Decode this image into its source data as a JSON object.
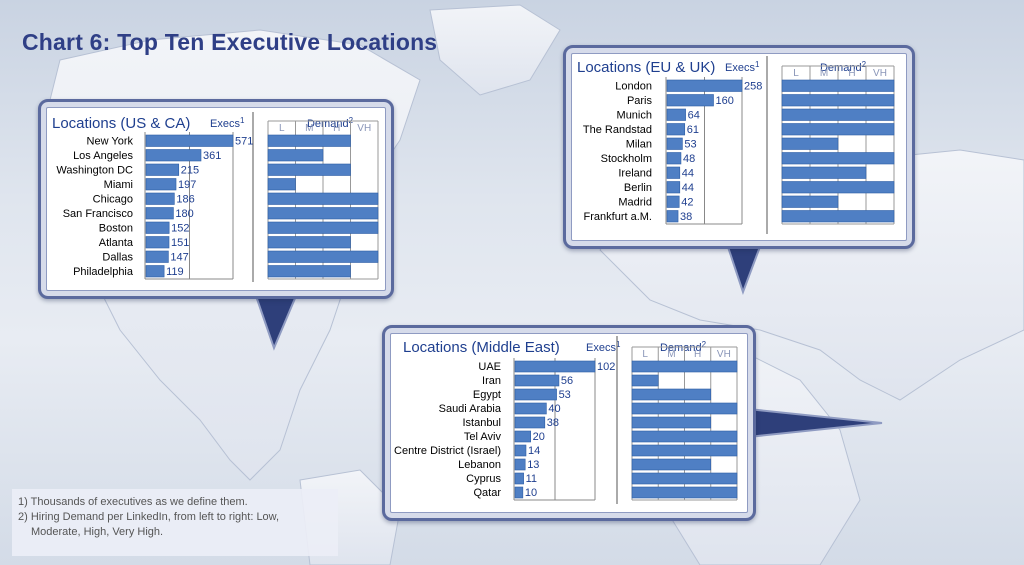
{
  "page": {
    "title": "Chart 6: Top Ten Executive Locations"
  },
  "footnotes": {
    "line1": "1) Thousands of executives as we define them.",
    "line2": "2) Hiring Demand per LinkedIn, from left to right: Low,",
    "line3": "Moderate, High, Very High."
  },
  "demand_scale": [
    "L",
    "M",
    "H",
    "VH"
  ],
  "colors": {
    "bar": "#4f7fc4",
    "bar_edge": "#2e5ea6",
    "title": "#2f3f86",
    "panel_border": "#5b6a9e"
  },
  "chart_data": [
    {
      "id": "us",
      "type": "bar",
      "title": "Locations (US & CA)",
      "execs_label": "Execs",
      "execs_sup": "1",
      "demand_label": "Demand",
      "demand_sup": "2",
      "categories": [
        "New York",
        "Los Angeles",
        "Washington DC",
        "Miami",
        "Chicago",
        "San Francisco",
        "Boston",
        "Atlanta",
        "Dallas",
        "Philadelphia"
      ],
      "values": [
        571,
        361,
        215,
        197,
        186,
        180,
        152,
        151,
        147,
        119
      ],
      "demand": [
        3.0,
        2.0,
        3.0,
        1.0,
        4.0,
        4.0,
        4.0,
        3.0,
        4.0,
        3.0
      ]
    },
    {
      "id": "eu",
      "type": "bar",
      "title": "Locations (EU & UK)",
      "execs_label": "Execs",
      "execs_sup": "1",
      "demand_label": "Demand",
      "demand_sup": "2",
      "categories": [
        "London",
        "Paris",
        "Munich",
        "The Randstad",
        "Milan",
        "Stockholm",
        "Ireland",
        "Berlin",
        "Madrid",
        "Frankfurt a.M."
      ],
      "values": [
        258,
        160,
        64,
        61,
        53,
        48,
        44,
        44,
        42,
        38
      ],
      "demand": [
        4.0,
        4.0,
        4.0,
        4.0,
        2.0,
        4.0,
        3.0,
        4.0,
        2.0,
        4.0
      ]
    },
    {
      "id": "me",
      "type": "bar",
      "title": "Locations (Middle East)",
      "execs_label": "Execs",
      "execs_sup": "1",
      "demand_label": "Demand",
      "demand_sup": "2",
      "categories": [
        "UAE",
        "Iran",
        "Egypt",
        "Saudi Arabia",
        "Istanbul",
        "Tel Aviv",
        "Centre District (Israel)",
        "Lebanon",
        "Cyprus",
        "Qatar"
      ],
      "values": [
        102,
        56,
        53,
        40,
        38,
        20,
        14,
        13,
        11,
        10
      ],
      "demand": [
        4.0,
        1.0,
        3.0,
        4.0,
        3.0,
        4.0,
        4.0,
        3.0,
        4.0,
        4.0
      ]
    }
  ]
}
